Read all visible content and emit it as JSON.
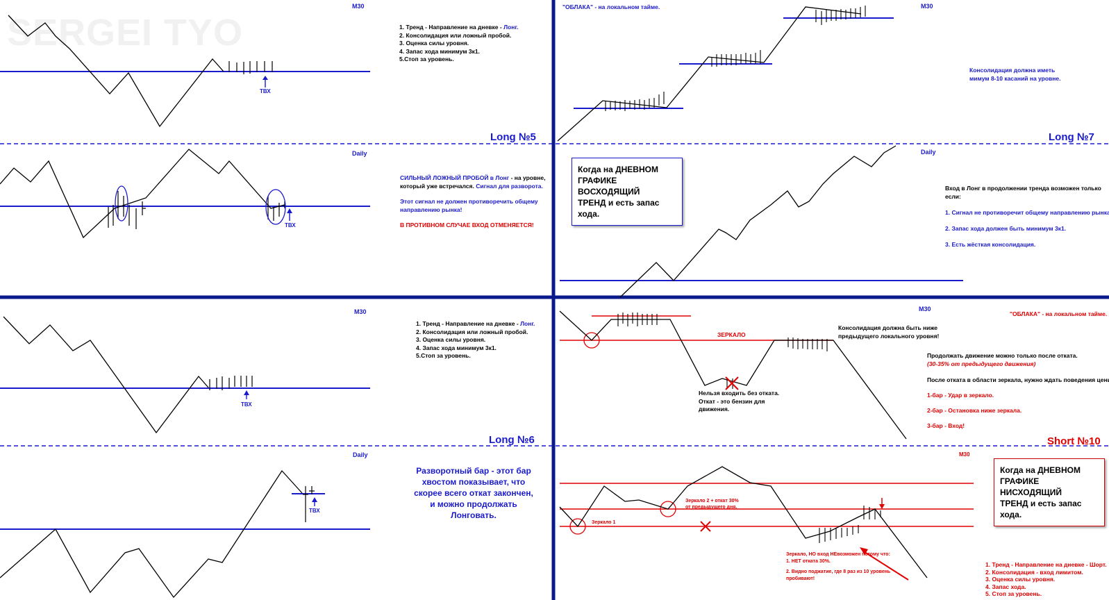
{
  "watermark": "SERGEI TYO",
  "p1": {
    "tf": "M30",
    "steps": [
      "1. Тренд - Направление на дневке - ",
      "2. Консолидация или ложный пробой.",
      "3. Оценка силы уровня.",
      "4. Запас хода минимум 3к1.",
      "5.Стоп за уровень."
    ],
    "long_word": "Лонг.",
    "entry": "ТВХ"
  },
  "p2": {
    "tf": "Daily",
    "label": "Long №5",
    "l1a": "СИЛЬНЫЙ ЛОЖНЫЙ ПРОБОЙ в Лонг",
    "l1b": " - на уровне,",
    "l2a": "который уже встречался. ",
    "l2b": "Сигнал для разворота.",
    "l3": "Этот сигнал не должен противоречить общему",
    "l4": "направлению рынка!",
    "l5": "В ПРОТИВНОМ СЛУЧАЕ ВХОД ОТМЕНЯЕТСЯ!",
    "entry": "ТВХ"
  },
  "p3": {
    "tf": "M30",
    "cloud": "\"ОБЛАКА\" - на локальном тайме.",
    "note1": "Консолидация должна иметь",
    "note2": "мимум 8-10 касаний на уровне."
  },
  "p4": {
    "tf": "Daily",
    "label": "Long №7",
    "box": [
      "Когда на ДНЕВНОМ",
      "ГРАФИКЕ ВОСХОДЯЩИЙ",
      "ТРЕНД и есть запас хода."
    ],
    "intro1": "Вход в Лонг в продолжении тренда возможен только",
    "intro2": "если:",
    "c1": "1. Сигнал не противоречит общему направлению рынка.",
    "c2": "2. Запас хода должен быть минимум 3к1.",
    "c3": "3. Есть жёсткая консолидация."
  },
  "p5": {
    "tf": "M30",
    "steps": [
      "1. Тренд - Направление на дневке - ",
      "2. Консолидация или ложный пробой.",
      "3. Оценка силы уровня.",
      "4. Запас хода минимум 3к1.",
      "5.Стоп за уровень."
    ],
    "long_word": "Лонг.",
    "entry": "ТВХ"
  },
  "p6": {
    "tf": "Daily",
    "label": "Long №6",
    "text": [
      "Разворотный бар - этот бар",
      "хвостом показывает, что",
      "скорее всего откат закончен,",
      "и можно продолжать",
      "Лонговать."
    ],
    "entry": "ТВХ"
  },
  "p7": {
    "tf": "M30",
    "cloud": "\"ОБЛАКА\" - на локальном тайме.",
    "mirror": "ЗЕРКАЛО",
    "cons1": "Консолидация должна быть ниже",
    "cons2": "предыдущего локального уровня!",
    "no1": "Нельзя входить без отката.",
    "no2": "Откат - это бензин для",
    "no3": "движения.",
    "cont1": "Продолжать движение можно только после отката.",
    "cont2": "(30-35% от предыдущего движения)",
    "after": "После отката в области зеркала, нужно ждать поведения цены:",
    "b1": "1-бар - Удар в зеркало.",
    "b2": "2-бар - Остановка ниже зеркала.",
    "b3": "3-бар - Вход!"
  },
  "p8": {
    "tf": "M30",
    "label": "Short №10",
    "box": [
      "Когда на ДНЕВНОМ",
      "ГРАФИКЕ НИСХОДЯЩИЙ",
      "ТРЕНД и есть запас хода."
    ],
    "mirror1": "Зеркало 1",
    "mirror2a": "Зеркало 2 + откат 30%",
    "mirror2b": "от предыдущего дня.",
    "warn1": "Зеркало, НО вход НЕвозможен потому что:",
    "warn2": "1. НЕТ отката 30%.",
    "warn3": "2. Видно поджатие, где 8 раз из 10 уровень",
    "warn4": "пробивают!",
    "steps": [
      "1. Тренд - Направление на дневке - Шорт.",
      "2. Консолидация - вход лимитом.",
      "3. Оценка силы уровня.",
      "4. Запас хода.",
      "5. Стоп за уровень."
    ]
  }
}
